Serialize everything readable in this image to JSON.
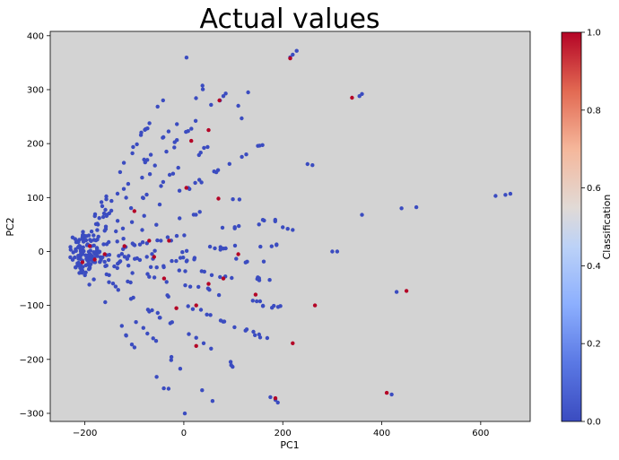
{
  "chart_data": {
    "type": "scatter",
    "title": "Actual values",
    "xlabel": "PC1",
    "ylabel": "PC2",
    "xlim": [
      -270,
      700
    ],
    "ylim": [
      -315,
      408
    ],
    "xticks": [
      -200,
      0,
      200,
      400,
      600
    ],
    "yticks": [
      -300,
      -200,
      -100,
      0,
      100,
      200,
      300,
      400
    ],
    "plot_background": "#d3d3d3",
    "point_colors": {
      "class_0": "#3b4cc0",
      "class_1": "#b40426"
    },
    "colorbar": {
      "label": "Classification",
      "range": [
        0.0,
        1.0
      ],
      "ticks": [
        "0.0",
        "0.2",
        "0.4",
        "0.6",
        "0.8",
        "1.0"
      ],
      "colormap": "coolwarm"
    },
    "rays": [
      {
        "angle_deg": 56,
        "points": 24
      },
      {
        "angle_deg": 48,
        "points": 24
      },
      {
        "angle_deg": 43,
        "points": 22
      },
      {
        "angle_deg": 35,
        "points": 22
      },
      {
        "angle_deg": 27,
        "points": 24
      },
      {
        "angle_deg": 17,
        "points": 20
      },
      {
        "angle_deg": 9,
        "points": 26
      },
      {
        "angle_deg": 3,
        "points": 22
      },
      {
        "angle_deg": -1,
        "points": 26
      },
      {
        "angle_deg": -6,
        "points": 26
      },
      {
        "angle_deg": -12,
        "points": 26
      },
      {
        "angle_deg": -20,
        "points": 24
      },
      {
        "angle_deg": -30,
        "points": 22
      },
      {
        "angle_deg": -41,
        "points": 18
      },
      {
        "angle_deg": -50,
        "points": 18
      }
    ],
    "series": [
      {
        "classification": 0,
        "color": "#3b4cc0",
        "x": [
          215,
          220,
          228,
          73,
          80,
          110,
          130,
          360,
          355,
          630,
          650,
          660,
          470,
          440,
          360,
          310,
          300,
          220,
          210,
          200,
          260,
          250,
          430,
          420,
          185,
          175,
          190,
          25,
          40,
          55
        ],
        "y": [
          360,
          365,
          372,
          280,
          288,
          270,
          295,
          292,
          288,
          103,
          105,
          107,
          82,
          80,
          68,
          0,
          0,
          40,
          42,
          45,
          160,
          162,
          -75,
          -265,
          -275,
          -270,
          -280,
          -160,
          -170,
          -180
        ]
      },
      {
        "classification": 1,
        "color": "#b40426",
        "x": [
          215,
          72,
          50,
          15,
          70,
          5,
          -30,
          -70,
          -120,
          -160,
          -190,
          -205,
          -40,
          80,
          110,
          145,
          50,
          25,
          -15,
          -60,
          25,
          220,
          265,
          340,
          450,
          410,
          185,
          -100,
          -180
        ],
        "y": [
          358,
          280,
          225,
          205,
          98,
          118,
          20,
          20,
          10,
          -5,
          10,
          -20,
          -50,
          -50,
          -5,
          -80,
          -60,
          -100,
          -105,
          -10,
          -175,
          -170,
          -100,
          285,
          -73,
          -262,
          -272,
          75,
          -15
        ]
      }
    ]
  }
}
